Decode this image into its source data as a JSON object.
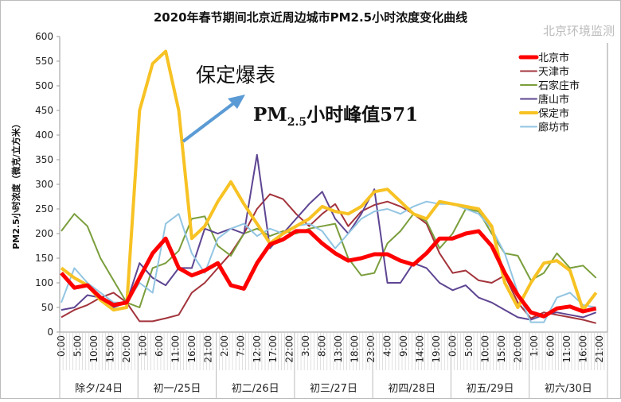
{
  "chart_data": {
    "type": "line",
    "title": "2020年春节期间北京近周边城市PM2.5小时浓度变化曲线",
    "ylabel": "PM2.5小时浓度（微克/立方米）",
    "xlabel": "",
    "ylim": [
      0,
      600
    ],
    "yticks": [
      0,
      50,
      100,
      150,
      200,
      250,
      300,
      350,
      400,
      450,
      500,
      550,
      600
    ],
    "grid": false,
    "legend_position": "top-right",
    "x_tick_labels": [
      "0:00",
      "5:00",
      "10:00",
      "15:00",
      "20:00",
      "1:00",
      "6:00",
      "11:00",
      "16:00",
      "21:00",
      "2:00",
      "7:00",
      "12:00",
      "17:00",
      "22:00",
      "3:00",
      "8:00",
      "13:00",
      "18:00",
      "23:00",
      "4:00",
      "9:00",
      "14:00",
      "19:00",
      "0:00",
      "5:00",
      "10:00",
      "15:00",
      "20:00",
      "1:00",
      "6:00",
      "11:00",
      "16:00",
      "21:00"
    ],
    "day_groups": [
      "除夕/24日",
      "初一/25日",
      "初二/26日",
      "初三/27日",
      "初四/28日",
      "初五/29日",
      "初六/30日"
    ],
    "x": [
      "24日 0:00",
      "24日 4:00",
      "24日 8:00",
      "24日 12:00",
      "24日 16:00",
      "24日 20:00",
      "25日 0:00",
      "25日 4:00",
      "25日 8:00",
      "25日 12:00",
      "25日 16:00",
      "25日 20:00",
      "26日 0:00",
      "26日 4:00",
      "26日 8:00",
      "26日 12:00",
      "26日 16:00",
      "26日 20:00",
      "27日 0:00",
      "27日 4:00",
      "27日 8:00",
      "27日 12:00",
      "27日 16:00",
      "27日 20:00",
      "28日 0:00",
      "28日 4:00",
      "28日 8:00",
      "28日 12:00",
      "28日 16:00",
      "28日 20:00",
      "29日 0:00",
      "29日 4:00",
      "29日 8:00",
      "29日 12:00",
      "29日 16:00",
      "29日 20:00",
      "30日 0:00",
      "30日 4:00",
      "30日 8:00",
      "30日 12:00",
      "30日 16:00",
      "30日 20:00"
    ],
    "series": [
      {
        "name": "北京市",
        "color": "#ff0000",
        "values": [
          120,
          90,
          95,
          70,
          55,
          60,
          110,
          160,
          190,
          130,
          115,
          125,
          140,
          95,
          88,
          140,
          178,
          188,
          205,
          205,
          180,
          160,
          145,
          150,
          158,
          158,
          145,
          137,
          160,
          190,
          190,
          200,
          205,
          175,
          120,
          75,
          40,
          32,
          48,
          52,
          42,
          48
        ]
      },
      {
        "name": "天津市",
        "color": "#a3343c",
        "values": [
          30,
          45,
          55,
          70,
          80,
          60,
          22,
          22,
          28,
          35,
          80,
          100,
          130,
          160,
          200,
          250,
          280,
          270,
          240,
          215,
          240,
          260,
          215,
          245,
          258,
          265,
          255,
          240,
          220,
          160,
          120,
          125,
          105,
          100,
          115,
          60,
          28,
          40,
          35,
          30,
          25,
          18
        ]
      },
      {
        "name": "石家庄市",
        "color": "#7a9e3c",
        "values": [
          205,
          240,
          215,
          150,
          105,
          60,
          50,
          130,
          140,
          165,
          230,
          235,
          175,
          155,
          200,
          210,
          195,
          205,
          200,
          210,
          215,
          220,
          150,
          115,
          120,
          180,
          205,
          240,
          225,
          170,
          200,
          250,
          245,
          200,
          160,
          155,
          105,
          120,
          160,
          130,
          135,
          110
        ]
      },
      {
        "name": "唐山市",
        "color": "#5e4592",
        "values": [
          45,
          50,
          75,
          70,
          50,
          60,
          140,
          110,
          95,
          130,
          130,
          210,
          200,
          210,
          200,
          360,
          170,
          200,
          230,
          260,
          285,
          230,
          200,
          240,
          290,
          100,
          100,
          140,
          130,
          100,
          85,
          95,
          70,
          60,
          45,
          30,
          25,
          35,
          40,
          35,
          30,
          40
        ]
      },
      {
        "name": "保定市",
        "color": "#f7c223",
        "values": [
          130,
          110,
          95,
          65,
          45,
          50,
          450,
          545,
          570,
          450,
          190,
          215,
          265,
          305,
          260,
          220,
          180,
          200,
          215,
          230,
          255,
          245,
          240,
          255,
          285,
          290,
          265,
          240,
          230,
          265,
          260,
          255,
          250,
          215,
          100,
          50,
          100,
          140,
          145,
          125,
          45,
          80
        ]
      },
      {
        "name": "廊坊市",
        "color": "#92c5e2",
        "values": [
          60,
          130,
          100,
          80,
          60,
          60,
          100,
          80,
          220,
          240,
          160,
          120,
          190,
          210,
          220,
          195,
          210,
          200,
          215,
          220,
          205,
          170,
          200,
          230,
          245,
          250,
          240,
          255,
          265,
          260,
          260,
          250,
          240,
          210,
          160,
          80,
          20,
          20,
          70,
          80,
          55,
          50
        ]
      }
    ],
    "annotations": {
      "label1": "保定爆表",
      "label2_prefix": "PM",
      "label2_sub": "2.5",
      "label2_suffix": "小时峰值571",
      "arrow_color": "#5b9bd5"
    }
  },
  "watermark": "北京环境监测"
}
